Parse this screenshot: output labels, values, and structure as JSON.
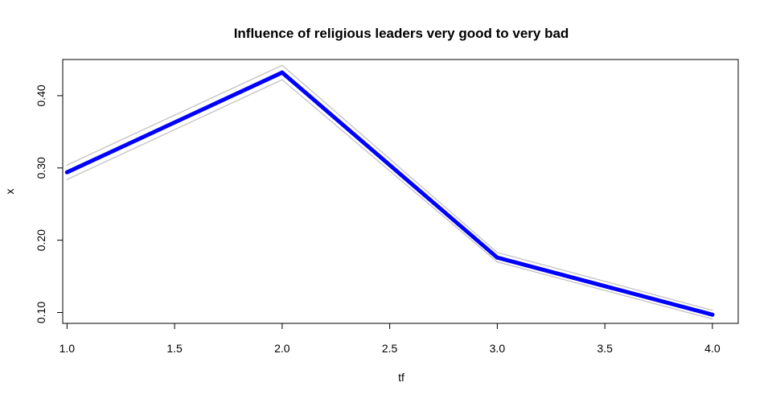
{
  "chart_data": {
    "type": "line",
    "title": "Influence of religious leaders very good to very bad",
    "xlabel": "tf",
    "ylabel": "x",
    "xlim": [
      0.98,
      4.12
    ],
    "ylim": [
      0.085,
      0.45
    ],
    "x": [
      1.0,
      2.0,
      3.0,
      4.0
    ],
    "x_ticks": [
      "1.0",
      "1.5",
      "2.0",
      "2.5",
      "3.0",
      "3.5",
      "4.0"
    ],
    "y_ticks": [
      "0.10",
      "0.20",
      "0.30",
      "0.40"
    ],
    "grid": false,
    "legend": "none",
    "series": [
      {
        "values": [
          0.294,
          0.432,
          0.176,
          0.097
        ],
        "color": "#0000ff",
        "role": "estimate"
      },
      {
        "values": [
          0.304,
          0.442,
          0.183,
          0.103
        ],
        "color": "#bebebe",
        "role": "upper bound"
      },
      {
        "values": [
          0.284,
          0.422,
          0.17,
          0.091
        ],
        "color": "#bebebe",
        "role": "lower bound"
      }
    ]
  }
}
